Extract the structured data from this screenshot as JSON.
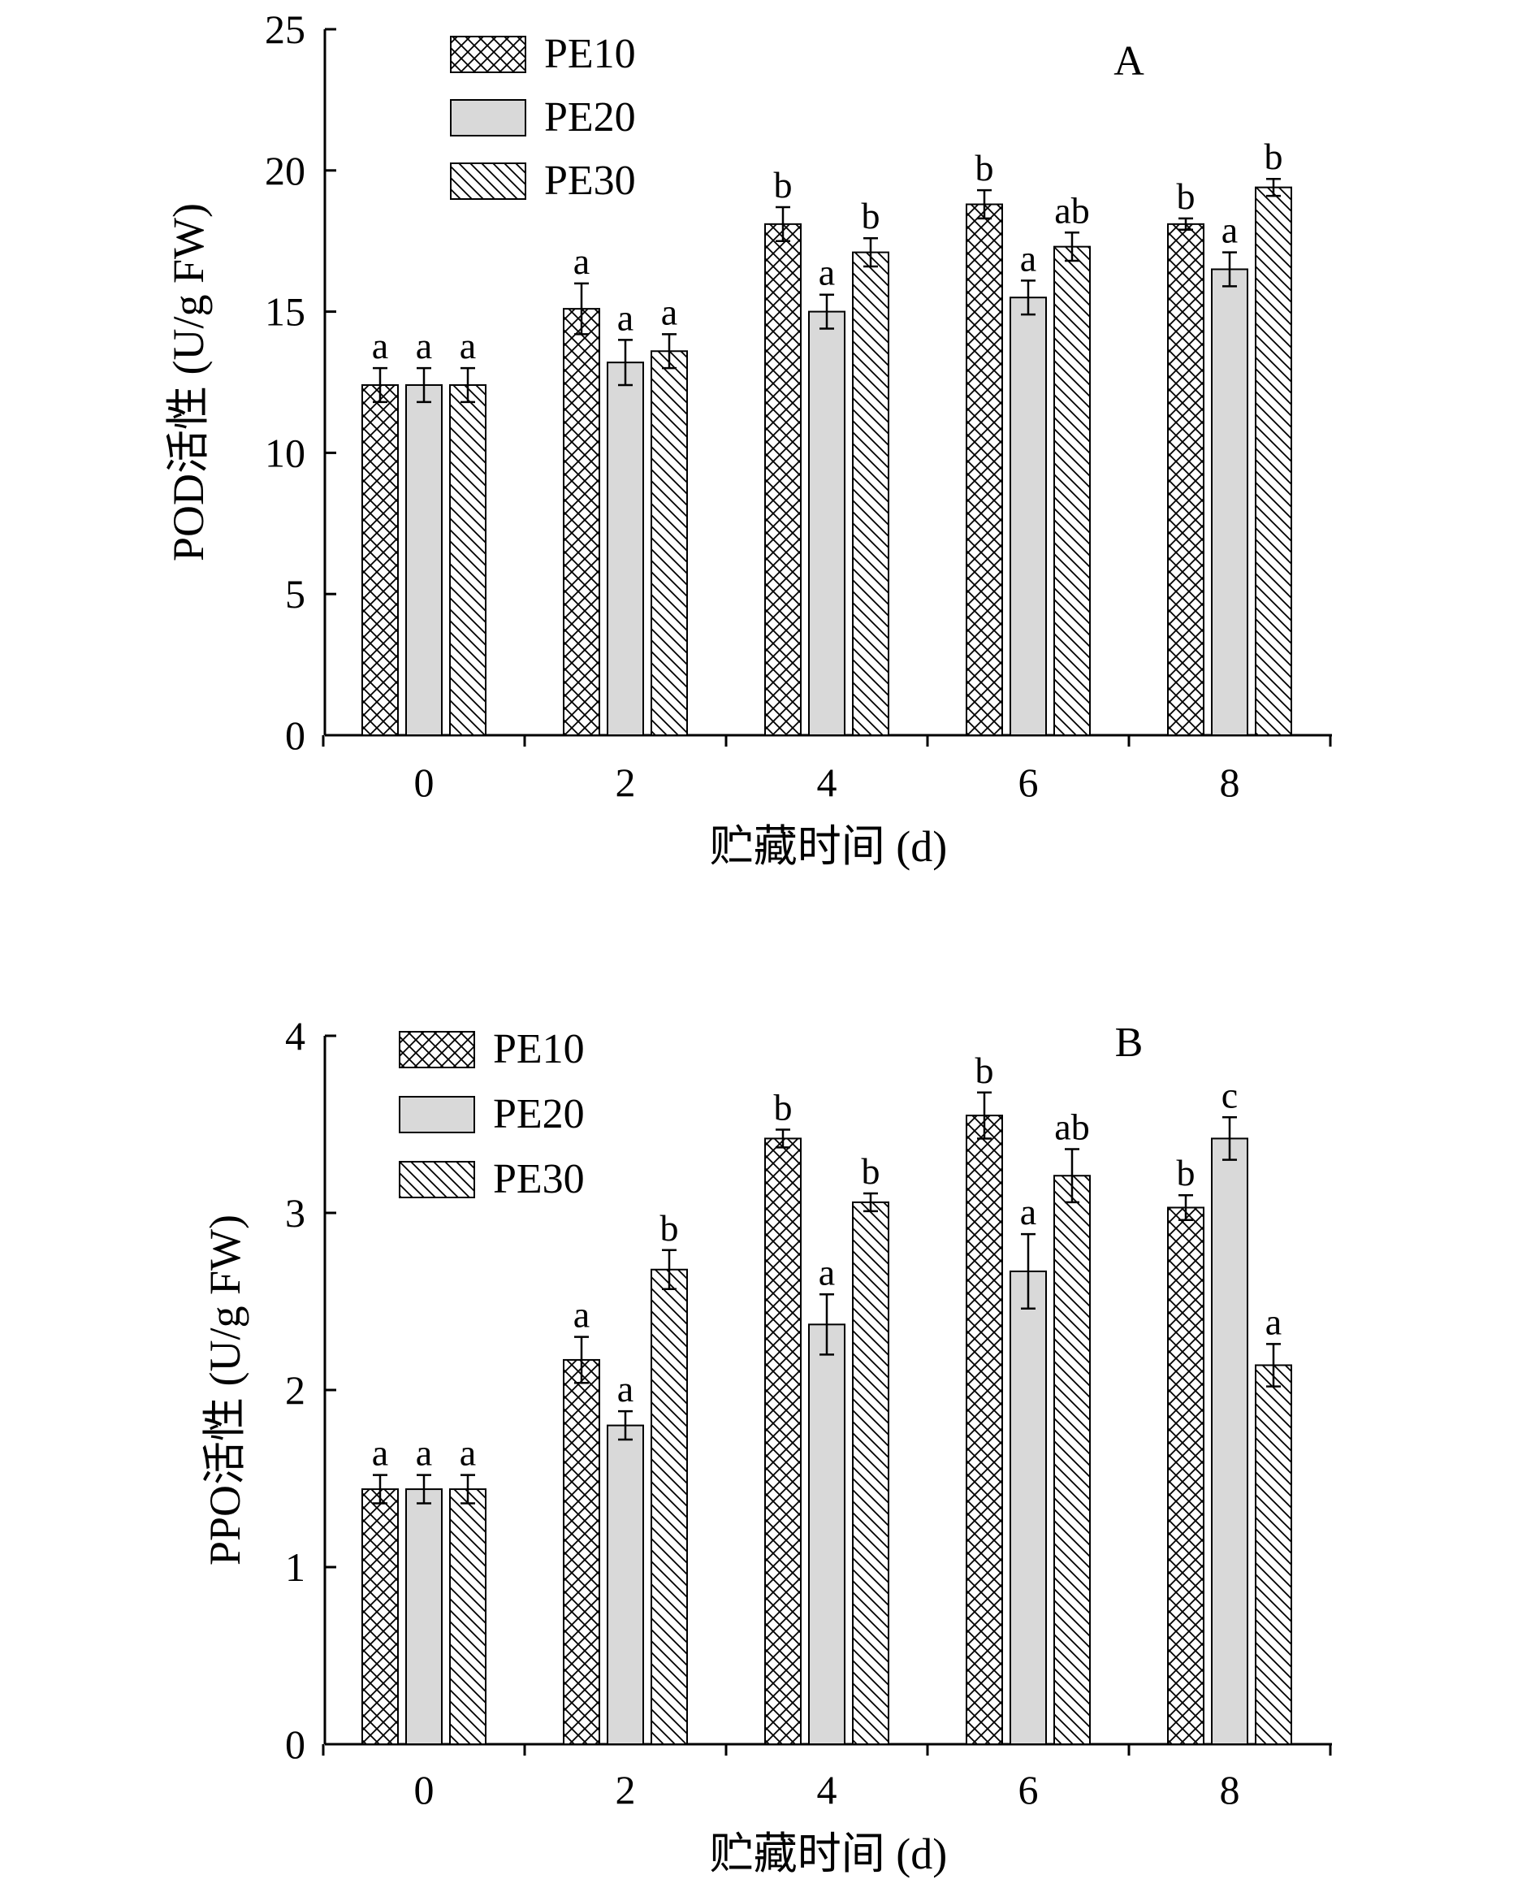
{
  "chart_data": [
    {
      "type": "bar",
      "panel_label": "A",
      "categories": [
        "0",
        "2",
        "4",
        "6",
        "8"
      ],
      "series": [
        {
          "name": "PE10",
          "values": [
            12.4,
            15.1,
            18.1,
            18.8,
            18.1
          ],
          "errors": [
            0.6,
            0.9,
            0.6,
            0.5,
            0.2
          ],
          "letters": [
            "a",
            "a",
            "b",
            "b",
            "b"
          ]
        },
        {
          "name": "PE20",
          "values": [
            12.4,
            13.2,
            15.0,
            15.5,
            16.5
          ],
          "errors": [
            0.6,
            0.8,
            0.6,
            0.6,
            0.6
          ],
          "letters": [
            "a",
            "a",
            "a",
            "a",
            "a"
          ]
        },
        {
          "name": "PE30",
          "values": [
            12.4,
            13.6,
            17.1,
            17.3,
            19.4
          ],
          "errors": [
            0.6,
            0.6,
            0.5,
            0.5,
            0.3
          ],
          "letters": [
            "a",
            "a",
            "b",
            "ab",
            "b"
          ]
        }
      ],
      "xlabel": "贮藏时间 (d)",
      "ylabel": "POD活性 (U/g FW)",
      "ylim": [
        0,
        25
      ],
      "yticks": [
        "0",
        "5",
        "10",
        "15",
        "20",
        "25"
      ],
      "legend_position": "top-left",
      "grid": false
    },
    {
      "type": "bar",
      "panel_label": "B",
      "categories": [
        "0",
        "2",
        "4",
        "6",
        "8"
      ],
      "series": [
        {
          "name": "PE10",
          "values": [
            1.44,
            2.17,
            3.42,
            3.55,
            3.03
          ],
          "errors": [
            0.08,
            0.13,
            0.05,
            0.13,
            0.07
          ],
          "letters": [
            "a",
            "a",
            "b",
            "b",
            "b"
          ]
        },
        {
          "name": "PE20",
          "values": [
            1.44,
            1.8,
            2.37,
            2.67,
            3.42
          ],
          "errors": [
            0.08,
            0.08,
            0.17,
            0.21,
            0.12
          ],
          "letters": [
            "a",
            "a",
            "a",
            "a",
            "c"
          ]
        },
        {
          "name": "PE30",
          "values": [
            1.44,
            2.68,
            3.06,
            3.21,
            2.14
          ],
          "errors": [
            0.08,
            0.11,
            0.05,
            0.15,
            0.12
          ],
          "letters": [
            "a",
            "b",
            "b",
            "ab",
            "a"
          ]
        }
      ],
      "xlabel": "贮藏时间 (d)",
      "ylabel": "PPO活性 (U/g FW)",
      "ylim": [
        0,
        4
      ],
      "yticks": [
        "0",
        "1",
        "2",
        "3",
        "4"
      ],
      "legend_position": "top-left",
      "grid": false
    }
  ]
}
